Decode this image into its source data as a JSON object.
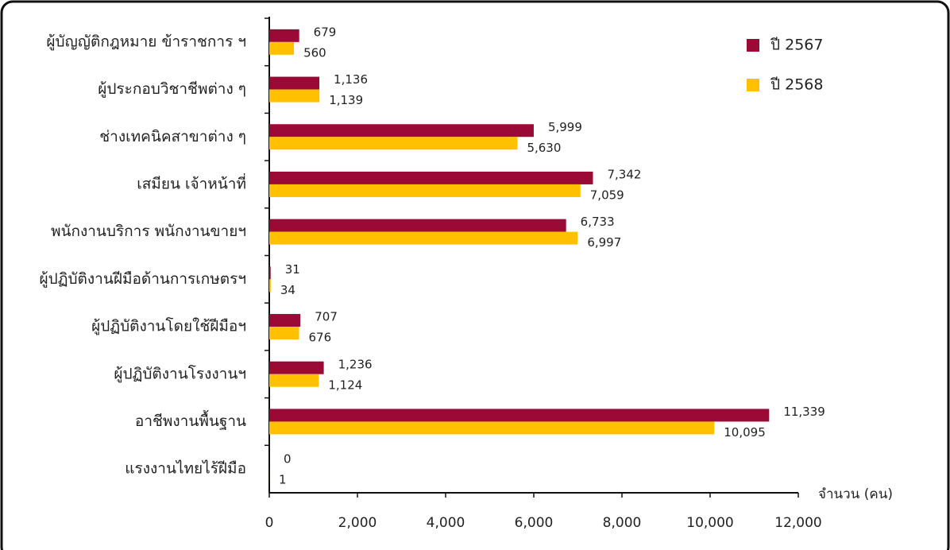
{
  "chart_data": {
    "type": "bar",
    "orientation": "horizontal",
    "categories": [
      "ผู้บัญญัติกฎหมาย ข้าราชการ ฯ",
      "ผู้ประกอบวิชาชีพต่าง ๆ",
      "ช่างเทคนิคสาขาต่าง ๆ",
      "เสมียน เจ้าหน้าที่",
      "พนักงานบริการ พนักงานขายฯ",
      "ผู้ปฏิบัติงานฝีมือด้านการเกษตรฯ",
      "ผู้ปฏิบัติงานโดยใช้ฝีมือฯ",
      "ผู้ปฏิบัติงานโรงงานฯ",
      "อาชีพงานพื้นฐาน",
      "แรงงานไทยไร้ฝีมือ"
    ],
    "series": [
      {
        "name": "ปี 2567",
        "color": "#9b0a37",
        "values": [
          679,
          1136,
          5999,
          7342,
          6733,
          31,
          707,
          1236,
          11339,
          0
        ],
        "value_labels": [
          "679",
          "1,136",
          "5,999",
          "7,342",
          "6,733",
          "31",
          "707",
          "1,236",
          "11,339",
          "0"
        ]
      },
      {
        "name": "ปี 2568",
        "color": "#ffc000",
        "values": [
          560,
          1139,
          5630,
          7059,
          6997,
          34,
          676,
          1124,
          10095,
          1
        ],
        "value_labels": [
          "560",
          "1,139",
          "5,630",
          "7,059",
          "6,997",
          "34",
          "676",
          "1,124",
          "10,095",
          "1"
        ]
      }
    ],
    "xlabel": "จำนวน (คน)",
    "xlim": [
      0,
      12000
    ],
    "xticks": [
      0,
      {
        "value": 2000,
        "label": "2,000"
      },
      {
        "value": 4000,
        "label": "4,000"
      },
      {
        "value": 6000,
        "label": "6,000"
      },
      {
        "value": 8000,
        "label": "8,000"
      },
      {
        "value": 10000,
        "label": "10,000"
      },
      {
        "value": 12000,
        "label": "12,000"
      }
    ],
    "legend": "top-right"
  }
}
